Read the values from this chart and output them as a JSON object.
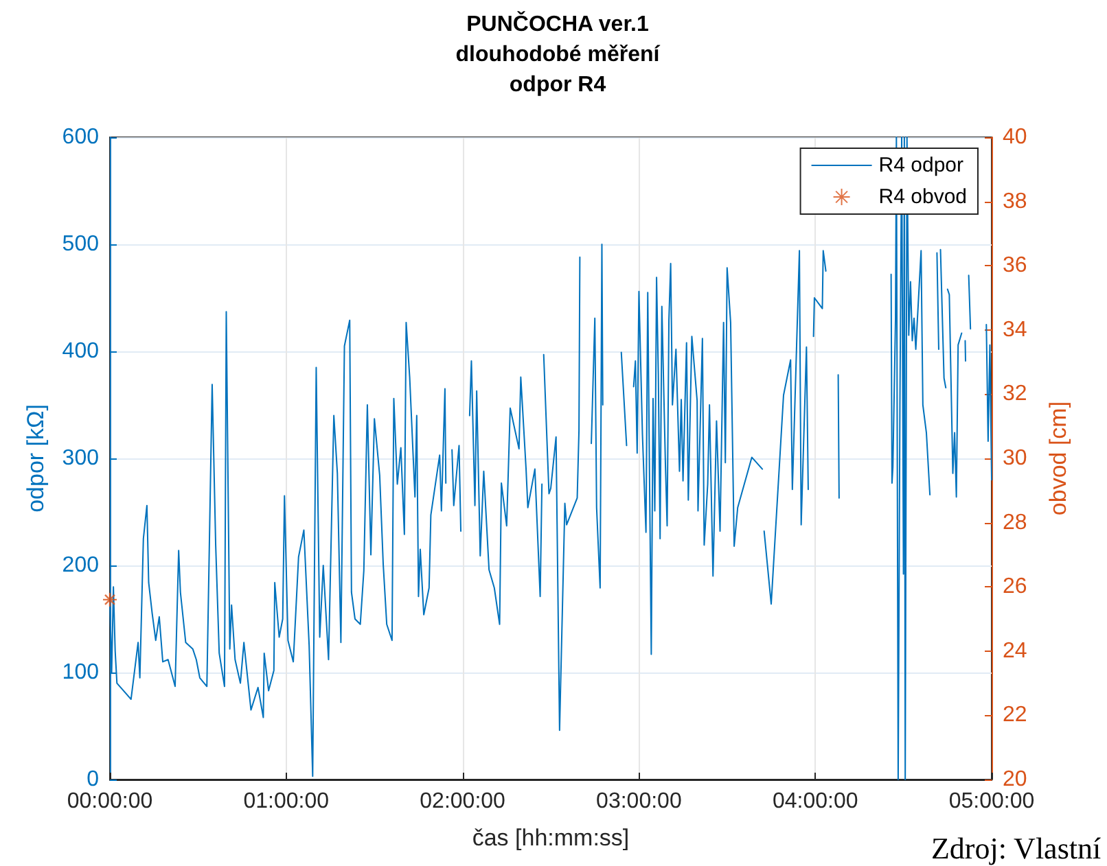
{
  "chart_data": {
    "type": "line",
    "title": "PUNČOCHA ver.1\ndlouhodobé měření\nodpor R4",
    "xlabel": "čas [hh:mm:ss]",
    "ylabel": "odpor [kΩ]",
    "y2label": "obvod [cm]",
    "xlim": [
      0,
      5
    ],
    "xticks": [
      {
        "value": 0,
        "label": "00:00:00"
      },
      {
        "value": 1,
        "label": "01:00:00"
      },
      {
        "value": 2,
        "label": "02:00:00"
      },
      {
        "value": 3,
        "label": "03:00:00"
      },
      {
        "value": 4,
        "label": "04:00:00"
      },
      {
        "value": 5,
        "label": "05:00:00"
      }
    ],
    "ylim": [
      0,
      600
    ],
    "yticks": [
      0,
      100,
      200,
      300,
      400,
      500,
      600
    ],
    "y2lim": [
      20,
      40
    ],
    "y2ticks": [
      20,
      22,
      24,
      26,
      28,
      30,
      32,
      34,
      36,
      38,
      40
    ],
    "grid": true,
    "legend": "top right",
    "annotations": [
      "Zdroj: Vlastní"
    ],
    "series": [
      {
        "name": "R4 odpor",
        "color": "#0072bd",
        "marker": "none",
        "x": [
          0,
          0.01,
          0.02,
          0.03,
          0.04,
          0.12,
          0.16,
          0.17,
          0.19,
          0.21,
          0.22,
          0.24,
          0.26,
          0.28,
          0.3,
          0.33,
          0.37,
          0.39,
          0.4,
          0.43,
          0.47,
          0.49,
          0.51,
          0.55,
          0.58,
          0.6,
          0.62,
          0.65,
          0.66,
          0.68,
          0.69,
          0.71,
          0.74,
          0.76,
          0.8,
          0.84,
          0.87,
          0.875,
          0.9,
          0.93,
          0.935,
          0.96,
          0.98,
          0.99,
          1.01,
          1.04,
          1.07,
          1.1,
          1.13,
          1.15,
          1.17,
          1.19,
          1.21,
          1.24,
          1.27,
          1.29,
          1.31,
          1.33,
          1.36,
          1.37,
          1.39,
          1.42,
          1.44,
          1.46,
          1.48,
          1.5,
          1.53,
          1.55,
          1.57,
          1.6,
          1.61,
          1.63,
          1.65,
          1.67,
          1.68,
          1.7,
          1.73,
          1.74,
          1.75,
          1.76,
          1.78,
          1.81,
          1.82,
          1.87,
          1.88,
          1.9,
          1.905,
          1.92,
          1.94,
          1.95,
          1.98,
          1.99,
          2.02,
          2.04,
          2.05,
          2.07,
          2.08,
          2.1,
          2.12,
          2.15,
          2.18,
          2.21,
          2.22,
          2.25,
          2.27,
          2.32,
          2.33,
          2.36,
          2.37,
          2.41,
          2.44,
          2.45,
          2.455,
          2.46,
          2.49,
          2.5,
          2.53,
          2.55,
          2.58,
          2.59,
          2.65,
          2.66,
          2.665,
          2.7,
          2.73,
          2.75,
          2.76,
          2.78,
          2.79,
          2.795,
          2.85,
          2.9,
          2.93,
          2.95,
          2.97,
          2.98,
          2.99,
          3.0,
          3.02,
          3.04,
          3.05,
          3.07,
          3.08,
          3.09,
          3.1,
          3.11,
          3.12,
          3.13,
          3.15,
          3.16,
          3.17,
          3.18,
          3.19,
          3.21,
          3.23,
          3.24,
          3.25,
          3.27,
          3.28,
          3.3,
          3.33,
          3.335,
          3.36,
          3.37,
          3.39,
          3.4,
          3.42,
          3.44,
          3.46,
          3.48,
          3.49,
          3.5,
          3.52,
          3.54,
          3.56,
          3.64,
          3.7,
          3.705,
          3.71,
          3.75,
          3.82,
          3.86,
          3.87,
          3.91,
          3.92,
          3.95,
          3.96,
          3.975,
          3.99,
          3.995,
          4.04,
          4.045,
          4.06,
          4.1,
          4.13,
          4.135,
          4.3,
          4.43,
          4.435,
          4.44,
          4.455,
          4.46,
          4.47,
          4.48,
          4.49,
          4.5,
          4.505,
          4.51,
          4.52,
          4.53,
          4.54,
          4.55,
          4.56,
          4.57,
          4.6,
          4.61,
          4.63,
          4.65,
          4.67,
          4.69,
          4.7,
          4.705,
          4.71,
          4.73,
          4.74,
          4.745,
          4.75,
          4.76,
          4.78,
          4.79,
          4.8,
          4.81,
          4.83,
          4.84,
          4.85,
          4.852,
          4.86,
          4.87,
          4.88,
          4.92,
          4.97,
          4.98,
          4.99,
          5.0
        ],
        "values": [
          165,
          100,
          180,
          120,
          90,
          75,
          128,
          95,
          225,
          256,
          184,
          155,
          130,
          152,
          110,
          112,
          87,
          214,
          175,
          128,
          122,
          112,
          95,
          87,
          369,
          219,
          118,
          87,
          437,
          122,
          163,
          112,
          90,
          128,
          65,
          86,
          58,
          118,
          83,
          102,
          184,
          133,
          150,
          265,
          130,
          110,
          208,
          233,
          125,
          3,
          385,
          133,
          200,
          112,
          340,
          286,
          128,
          405,
          429,
          175,
          150,
          145,
          195,
          350,
          210,
          337,
          284,
          201,
          145,
          130,
          356,
          276,
          310,
          229,
          427,
          376,
          264,
          340,
          171,
          215,
          154,
          179,
          247,
          303,
          251,
          365,
          277,
          null,
          308,
          256,
          312,
          232,
          null,
          340,
          391,
          256,
          363,
          209,
          288,
          196,
          179,
          145,
          277,
          237,
          347,
          309,
          376,
          290,
          254,
          290,
          171,
          276,
          null,
          397,
          267,
          272,
          320,
          46,
          258,
          238,
          263,
          326,
          488,
          null,
          314,
          431,
          254,
          179,
          500,
          350,
          null,
          399,
          312,
          null,
          367,
          391,
          305,
          456,
          322,
          231,
          455,
          117,
          356,
          251,
          469,
          378,
          225,
          442,
          296,
          237,
          429,
          482,
          350,
          402,
          288,
          355,
          279,
          408,
          261,
          414,
          354,
          251,
          412,
          219,
          276,
          350,
          190,
          335,
          232,
          427,
          296,
          478,
          427,
          218,
          254,
          301,
          290,
          null,
          232,
          164,
          359,
          392,
          271,
          494,
          238,
          404,
          271,
          null,
          414,
          450,
          440,
          494,
          475,
          null,
          378,
          263,
          null,
          472,
          277,
          292,
          431,
          600,
          0,
          350,
          600,
          192,
          600,
          0,
          600,
          415,
          465,
          410,
          431,
          402,
          494,
          350,
          324,
          266,
          null,
          492,
          402,
          null,
          495,
          375,
          366,
          null,
          458,
          453,
          286,
          324,
          264,
          406,
          417,
          null,
          410,
          391,
          null,
          471,
          421,
          null,
          425,
          316,
          406,
          280
        ]
      },
      {
        "name": "R4 obvod",
        "type": "scatter",
        "axis": "y2",
        "color": "#d95319",
        "marker": "cross",
        "x": [
          0
        ],
        "values": [
          25.6
        ]
      }
    ]
  }
}
